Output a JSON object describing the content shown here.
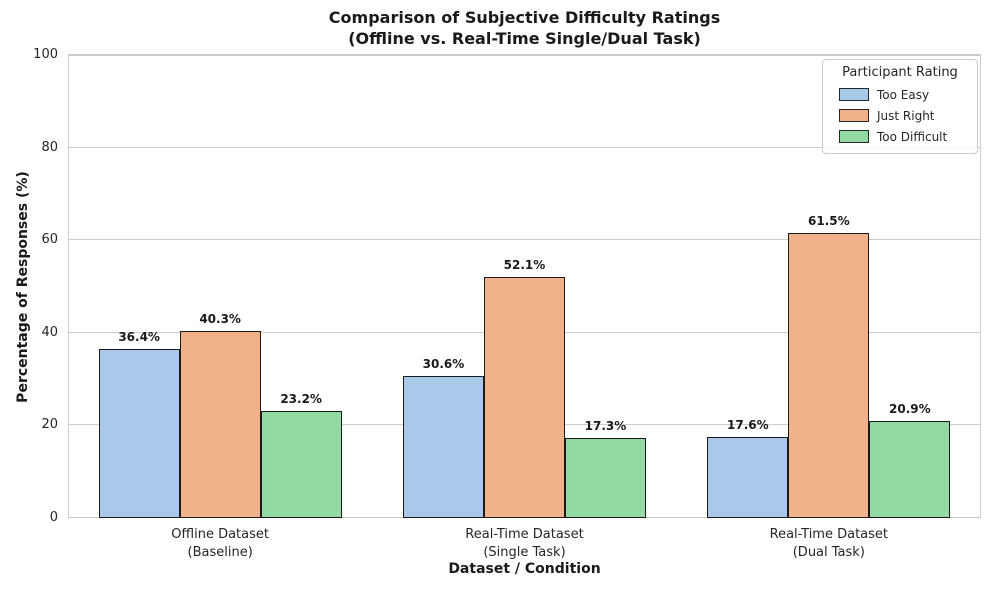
{
  "chart_data": {
    "type": "bar",
    "title_line1": "Comparison of Subjective Difficulty Ratings",
    "title_line2": "(Offline vs. Real-Time Single/Dual Task)",
    "xlabel": "Dataset / Condition",
    "ylabel": "Percentage of Responses (%)",
    "ylim": [
      0,
      100
    ],
    "yticks": [
      0,
      20,
      40,
      60,
      80,
      100
    ],
    "grid": true,
    "bar_edge_color": "#1a1a1a",
    "categories": [
      {
        "line1": "Offline Dataset",
        "line2": "(Baseline)"
      },
      {
        "line1": "Real-Time Dataset",
        "line2": "(Single Task)"
      },
      {
        "line1": "Real-Time Dataset",
        "line2": "(Dual Task)"
      }
    ],
    "series": [
      {
        "name": "Too Easy",
        "color": "#a9c9ea",
        "values": [
          36.4,
          30.6,
          17.6
        ]
      },
      {
        "name": "Just Right",
        "color": "#f0b289",
        "values": [
          40.3,
          52.1,
          61.5
        ]
      },
      {
        "name": "Too Difficult",
        "color": "#92d9a4",
        "values": [
          23.2,
          17.3,
          20.9
        ]
      }
    ],
    "value_label_suffix": "%",
    "legend": {
      "title": "Participant Rating",
      "position": "upper right"
    }
  }
}
